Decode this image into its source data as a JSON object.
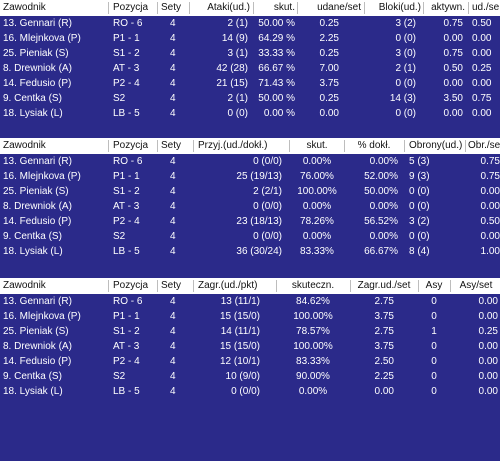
{
  "tables": [
    {
      "headers": [
        "Zawodnik",
        "Pozycja",
        "Sety",
        "Ataki(ud.)",
        "skut.",
        "udane/set",
        "Bloki(ud.)",
        "aktywn.",
        "ud./se"
      ],
      "rows": [
        [
          "13. Gennari (R)",
          "RO - 6",
          "4",
          "2 (1)",
          "50.00 %",
          "0.25",
          "3 (2)",
          "0.75",
          "0.50"
        ],
        [
          "16. Mlejnkova (P)",
          "P1 - 1",
          "4",
          "14 (9)",
          "64.29 %",
          "2.25",
          "0 (0)",
          "0.00",
          "0.00"
        ],
        [
          "25. Pieniak (S)",
          "S1 - 2",
          "4",
          "3 (1)",
          "33.33 %",
          "0.25",
          "3 (0)",
          "0.75",
          "0.00"
        ],
        [
          "8. Drewniok (A)",
          "AT - 3",
          "4",
          "42 (28)",
          "66.67 %",
          "7.00",
          "2 (1)",
          "0.50",
          "0.25"
        ],
        [
          "14. Fedusio (P)",
          "P2 - 4",
          "4",
          "21 (15)",
          "71.43 %",
          "3.75",
          "0 (0)",
          "0.00",
          "0.00"
        ],
        [
          "9. Centka (S)",
          "S2",
          "4",
          "2 (1)",
          "50.00 %",
          "0.25",
          "14 (3)",
          "3.50",
          "0.75"
        ],
        [
          "18. Lysiak (L)",
          "LB - 5",
          "4",
          "0 (0)",
          "0.00 %",
          "0.00",
          "0 (0)",
          "0.00",
          "0.00"
        ]
      ]
    },
    {
      "headers": [
        "Zawodnik",
        "Pozycja",
        "Sety",
        "Przyj.(ud./dokł.)",
        "skut.",
        "% dokł.",
        "Obrony(ud.)",
        "Obr./se"
      ],
      "rows": [
        [
          "13. Gennari (R)",
          "RO - 6",
          "4",
          "0 (0/0)",
          "0.00%",
          "0.00%",
          "5 (3)",
          "0.75"
        ],
        [
          "16. Mlejnkova (P)",
          "P1 - 1",
          "4",
          "25 (19/13)",
          "76.00%",
          "52.00%",
          "9 (3)",
          "0.75"
        ],
        [
          "25. Pieniak (S)",
          "S1 - 2",
          "4",
          "2 (2/1)",
          "100.00%",
          "50.00%",
          "0 (0)",
          "0.00"
        ],
        [
          "8. Drewniok (A)",
          "AT - 3",
          "4",
          "0 (0/0)",
          "0.00%",
          "0.00%",
          "0 (0)",
          "0.00"
        ],
        [
          "14. Fedusio (P)",
          "P2 - 4",
          "4",
          "23 (18/13)",
          "78.26%",
          "56.52%",
          "3 (2)",
          "0.50"
        ],
        [
          "9. Centka (S)",
          "S2",
          "4",
          "0 (0/0)",
          "0.00%",
          "0.00%",
          "0 (0)",
          "0.00"
        ],
        [
          "18. Lysiak (L)",
          "LB - 5",
          "4",
          "36 (30/24)",
          "83.33%",
          "66.67%",
          "8 (4)",
          "1.00"
        ]
      ]
    },
    {
      "headers": [
        "Zawodnik",
        "Pozycja",
        "Sety",
        "Zagr.(ud./pkt)",
        "skuteczn.",
        "Zagr.ud./set",
        "Asy",
        "Asy/set"
      ],
      "rows": [
        [
          "13. Gennari (R)",
          "RO - 6",
          "4",
          "13 (11/1)",
          "84.62%",
          "2.75",
          "0",
          "0.00"
        ],
        [
          "16. Mlejnkova (P)",
          "P1 - 1",
          "4",
          "15 (15/0)",
          "100.00%",
          "3.75",
          "0",
          "0.00"
        ],
        [
          "25. Pieniak (S)",
          "S1 - 2",
          "4",
          "14 (11/1)",
          "78.57%",
          "2.75",
          "1",
          "0.25"
        ],
        [
          "8. Drewniok (A)",
          "AT - 3",
          "4",
          "15 (15/0)",
          "100.00%",
          "3.75",
          "0",
          "0.00"
        ],
        [
          "14. Fedusio (P)",
          "P2 - 4",
          "4",
          "12 (10/1)",
          "83.33%",
          "2.50",
          "0",
          "0.00"
        ],
        [
          "9. Centka (S)",
          "S2",
          "4",
          "10 (9/0)",
          "90.00%",
          "2.25",
          "0",
          "0.00"
        ],
        [
          "18. Lysiak (L)",
          "LB - 5",
          "4",
          "0 (0/0)",
          "0.00%",
          "0.00",
          "0",
          "0.00"
        ]
      ]
    }
  ]
}
